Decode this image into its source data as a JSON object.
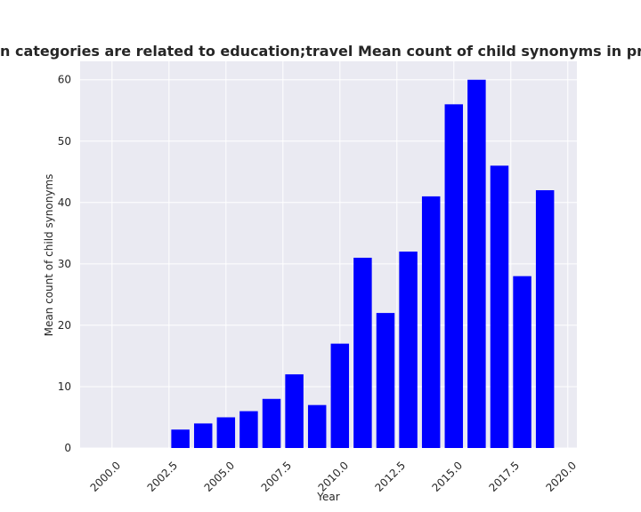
{
  "chart_data": {
    "type": "bar",
    "title": "n categories are related to education;travel Mean count of child synonyms in privacy policies b",
    "xlabel": "Year",
    "ylabel": "Mean count of child synonyms",
    "x": [
      2003,
      2004,
      2005,
      2006,
      2007,
      2008,
      2009,
      2010,
      2011,
      2012,
      2013,
      2014,
      2015,
      2016,
      2017,
      2018,
      2019
    ],
    "values": [
      3,
      4,
      5,
      6,
      8,
      12,
      7,
      17,
      31,
      22,
      32,
      41,
      56,
      60,
      46,
      28,
      42
    ],
    "xlim": [
      1998.6,
      2020.4
    ],
    "ylim": [
      0,
      63
    ],
    "xticks": [
      2000.0,
      2002.5,
      2005.0,
      2007.5,
      2010.0,
      2012.5,
      2015.0,
      2017.5,
      2020.0
    ],
    "xtick_labels": [
      "2000.0",
      "2002.5",
      "2005.0",
      "2007.5",
      "2010.0",
      "2012.5",
      "2015.0",
      "2017.5",
      "2020.0"
    ],
    "yticks": [
      0,
      10,
      20,
      30,
      40,
      50,
      60
    ],
    "ytick_labels": [
      "0",
      "10",
      "20",
      "30",
      "40",
      "50",
      "60"
    ],
    "grid": true,
    "colors": {
      "bar": "#0000ff",
      "plot_bg": "#eaeaf2",
      "grid": "#ffffff"
    }
  }
}
